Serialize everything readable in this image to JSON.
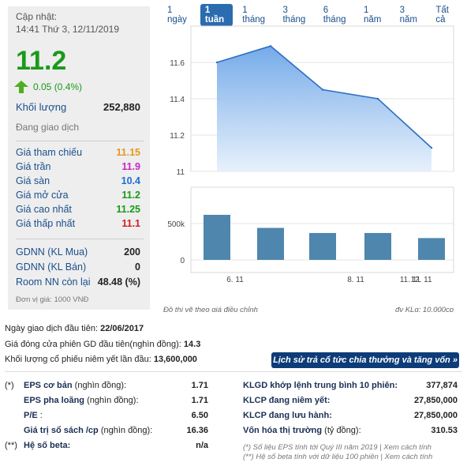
{
  "left_panel": {
    "update_label": "Cập nhật:",
    "update_time": "14:41 Thứ 3, 12/11/2019",
    "price": "11.2",
    "change": "0.05 (0.4%)",
    "volume_label": "Khối lượng",
    "volume_value": "252,880",
    "status": "Đang giao dịch",
    "prices": [
      {
        "label": "Giá tham chiếu",
        "value": "11.15",
        "color": "#e8961c"
      },
      {
        "label": "Giá trần",
        "value": "11.9",
        "color": "#cc22cc"
      },
      {
        "label": "Giá sàn",
        "value": "10.4",
        "color": "#1a6fd4"
      },
      {
        "label": "Giá mở cửa",
        "value": "11.2",
        "color": "#1a9a1a"
      },
      {
        "label": "Giá cao nhất",
        "value": "11.25",
        "color": "#1a9a1a"
      },
      {
        "label": "Giá thấp nhất",
        "value": "11.1",
        "color": "#d42020"
      }
    ],
    "foreign": [
      {
        "label": "GDNN (KL Mua)",
        "value": "200"
      },
      {
        "label": "GDNN (KL Bán)",
        "value": "0"
      },
      {
        "label": "Room NN còn lại",
        "value": "48.48 (%)"
      }
    ],
    "unit_note": "Đơn vị giá: 1000 VNĐ"
  },
  "tabs": [
    "1 ngày",
    "1 tuần",
    "1 tháng",
    "3 tháng",
    "6 tháng",
    "1 năm",
    "3 năm",
    "Tất cả"
  ],
  "active_tab": "1 tuần",
  "chart_data": [
    {
      "type": "area",
      "x": [
        1,
        2,
        3,
        4,
        5
      ],
      "values": [
        11.6,
        11.69,
        11.45,
        11.4,
        11.13
      ],
      "ylim": [
        11,
        11.8
      ],
      "yticks": [
        "11.6",
        "11.4",
        "11.2",
        "11"
      ],
      "color": "#7fb0e8"
    },
    {
      "type": "bar",
      "x": [
        1,
        2,
        3,
        4,
        5
      ],
      "values": [
        620000,
        440000,
        370000,
        370000,
        300000
      ],
      "ylim": [
        0,
        1000000
      ],
      "yticks": [
        "500k",
        "0"
      ],
      "xticks": [
        "6. 11",
        "8. 11",
        "11. 11",
        "12. 11"
      ],
      "color": "#4e86ad"
    }
  ],
  "chart_notes": {
    "left": "Đồ thị vẽ theo giá điều chỉnh",
    "right": "đv KLg: 10,000cp"
  },
  "info": [
    {
      "label": "Ngày giao dịch đầu tiên:",
      "value": "22/06/2017"
    },
    {
      "label": "Giá đóng cửa phiên GD đầu tiên(nghìn đồng):",
      "value": "14.3"
    },
    {
      "label": "Khối lượng cổ phiếu niêm yết lần đầu:",
      "value": "13,600,000"
    }
  ],
  "history_button": "Lịch sử trả cổ tức chia thưởng và tăng vốn »",
  "bottom_left": [
    {
      "prefix": "(*)",
      "bold": "EPS cơ bản",
      "rest": " (nghìn đồng):",
      "value": "1.71"
    },
    {
      "prefix": "",
      "bold": "EPS pha loãng",
      "rest": " (nghìn đồng):",
      "value": "1.71"
    },
    {
      "prefix": "",
      "bold": "P/E",
      "rest": " :",
      "value": "6.50"
    },
    {
      "prefix": "",
      "bold": "Giá trị sổ sách /cp",
      "rest": " (nghìn đồng):",
      "value": "16.36"
    },
    {
      "prefix": "(**)",
      "bold": "Hệ số beta:",
      "rest": "",
      "value": "n/a"
    }
  ],
  "bottom_right": [
    {
      "bold": "KLGD khớp lệnh trung bình 10 phiên:",
      "rest": "",
      "value": "377,874"
    },
    {
      "bold": "KLCP đang niêm yết:",
      "rest": "",
      "value": "27,850,000"
    },
    {
      "bold": "KLCP đang lưu hành:",
      "rest": "",
      "value": "27,850,000"
    },
    {
      "bold": "Vốn hóa thị trường",
      "rest": " (tỷ đồng):",
      "value": "310.53"
    }
  ],
  "footnotes": [
    "(*) Số liệu EPS tính tới Quý III năm 2019 | Xem cách tính",
    "(**) Hệ số beta tính với dữ liệu 100 phiên | Xem cách tính"
  ]
}
